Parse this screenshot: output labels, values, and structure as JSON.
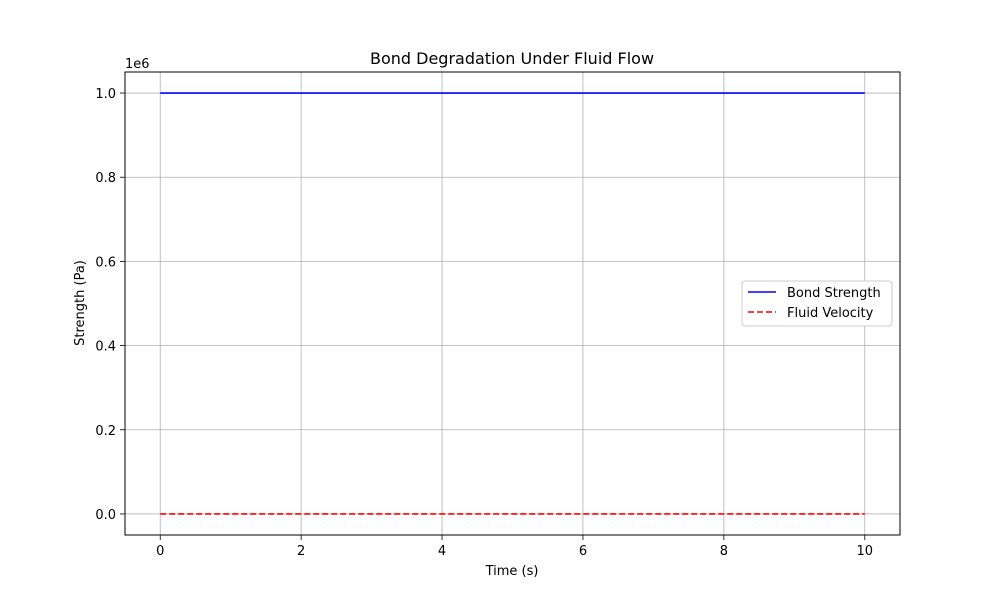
{
  "chart_data": {
    "type": "line",
    "title": "Bond Degradation Under Fluid Flow",
    "xlabel": "Time (s)",
    "ylabel": "Strength (Pa)",
    "y_offset_label": "1e6",
    "xlim": [
      -0.5,
      10.5
    ],
    "ylim": [
      -0.05,
      1.05
    ],
    "x_ticks": [
      0,
      2,
      4,
      6,
      8,
      10
    ],
    "x_tick_labels": [
      "0",
      "2",
      "4",
      "6",
      "8",
      "10"
    ],
    "y_ticks": [
      0.0,
      0.2,
      0.4,
      0.6,
      0.8,
      1.0
    ],
    "y_tick_labels": [
      "0.0",
      "0.2",
      "0.4",
      "0.6",
      "0.8",
      "1.0"
    ],
    "grid": true,
    "legend_position": "center-right",
    "series": [
      {
        "name": "Bond Strength",
        "color": "#0000ff",
        "style": "solid",
        "x": [
          0,
          10
        ],
        "y": [
          1.0,
          1.0
        ]
      },
      {
        "name": "Fluid Velocity",
        "color": "#ff0000",
        "style": "dashed",
        "x": [
          0,
          10
        ],
        "y": [
          0.0,
          0.0
        ]
      }
    ]
  }
}
